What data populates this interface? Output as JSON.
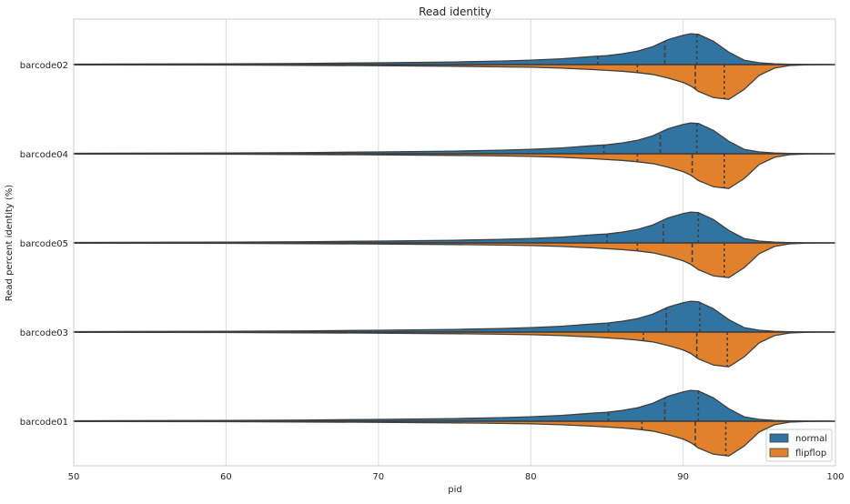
{
  "chart_data": {
    "type": "violin",
    "orientation": "horizontal",
    "split": true,
    "title": "Read identity",
    "xlabel": "pid",
    "ylabel": "Read percent identity (%)",
    "xlim": [
      50,
      100
    ],
    "xticks": [
      50,
      60,
      70,
      80,
      90,
      100
    ],
    "grid": "vertical",
    "legend_placement": "bottom-right",
    "categories": [
      "barcode02",
      "barcode04",
      "barcode05",
      "barcode03",
      "barcode01"
    ],
    "series": [
      {
        "name": "normal",
        "color": "#3274a1",
        "side": "top",
        "quartiles": [
          [
            84.4,
            88.8,
            90.9
          ],
          [
            84.8,
            88.5,
            90.9
          ],
          [
            85.0,
            88.7,
            91.0
          ],
          [
            85.1,
            88.9,
            91.1
          ],
          [
            85.1,
            88.8,
            91.0
          ]
        ]
      },
      {
        "name": "flipflop",
        "color": "#e1812c",
        "side": "bottom",
        "quartiles": [
          [
            87.0,
            90.8,
            92.7
          ],
          [
            87.0,
            90.6,
            92.7
          ],
          [
            87.0,
            90.6,
            92.7
          ],
          [
            87.4,
            90.9,
            92.9
          ],
          [
            87.3,
            90.8,
            92.8
          ]
        ]
      }
    ]
  }
}
